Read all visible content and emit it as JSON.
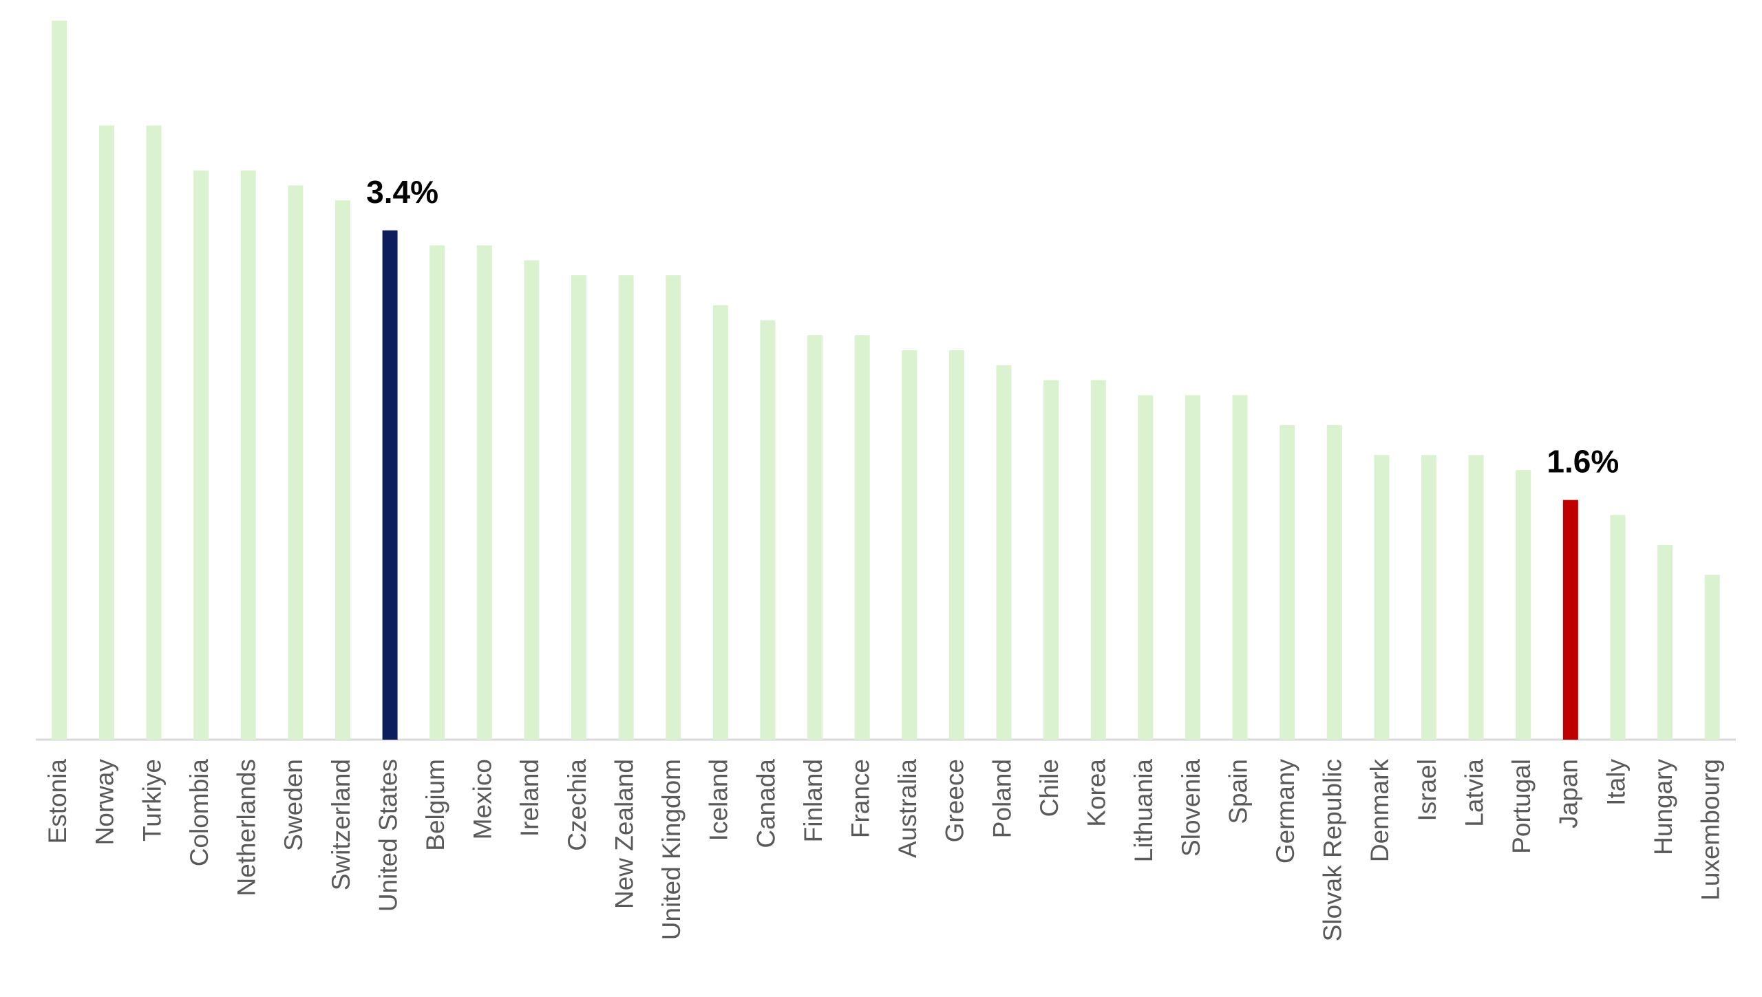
{
  "chart_data": {
    "type": "bar",
    "categories": [
      "Estonia",
      "Norway",
      "Turkiye",
      "Colombia",
      "Netherlands",
      "Sweden",
      "Switzerland",
      "United States",
      "Belgium",
      "Mexico",
      "Ireland",
      "Czechia",
      "New Zealand",
      "United Kingdom",
      "Iceland",
      "Canada",
      "Finland",
      "France",
      "Australia",
      "Greece",
      "Poland",
      "Chile",
      "Korea",
      "Lithuania",
      "Slovenia",
      "Spain",
      "Germany",
      "Slovak Republic",
      "Denmark",
      "Israel",
      "Latvia",
      "Portugal",
      "Japan",
      "Italy",
      "Hungary",
      "Luxembourg"
    ],
    "values": [
      4.8,
      4.1,
      4.1,
      3.8,
      3.8,
      3.7,
      3.6,
      3.4,
      3.3,
      3.3,
      3.2,
      3.1,
      3.1,
      3.1,
      2.9,
      2.8,
      2.7,
      2.7,
      2.6,
      2.6,
      2.5,
      2.4,
      2.4,
      2.3,
      2.3,
      2.3,
      2.1,
      2.1,
      1.9,
      1.9,
      1.9,
      1.8,
      1.6,
      1.5,
      1.3,
      1.1
    ],
    "value_labels": [
      null,
      null,
      null,
      null,
      null,
      null,
      null,
      "3.4%",
      null,
      null,
      null,
      null,
      null,
      null,
      null,
      null,
      null,
      null,
      null,
      null,
      null,
      null,
      null,
      null,
      null,
      null,
      null,
      null,
      null,
      null,
      null,
      null,
      "1.6%",
      null,
      null,
      null
    ],
    "colors": [
      "#daf2d0",
      "#daf2d0",
      "#daf2d0",
      "#daf2d0",
      "#daf2d0",
      "#daf2d0",
      "#daf2d0",
      "#0c1f5c",
      "#daf2d0",
      "#daf2d0",
      "#daf2d0",
      "#daf2d0",
      "#daf2d0",
      "#daf2d0",
      "#daf2d0",
      "#daf2d0",
      "#daf2d0",
      "#daf2d0",
      "#daf2d0",
      "#daf2d0",
      "#daf2d0",
      "#daf2d0",
      "#daf2d0",
      "#daf2d0",
      "#daf2d0",
      "#daf2d0",
      "#daf2d0",
      "#daf2d0",
      "#daf2d0",
      "#daf2d0",
      "#daf2d0",
      "#daf2d0",
      "#c00000",
      "#daf2d0",
      "#daf2d0",
      "#daf2d0"
    ],
    "ylim": [
      0,
      4.8
    ]
  }
}
